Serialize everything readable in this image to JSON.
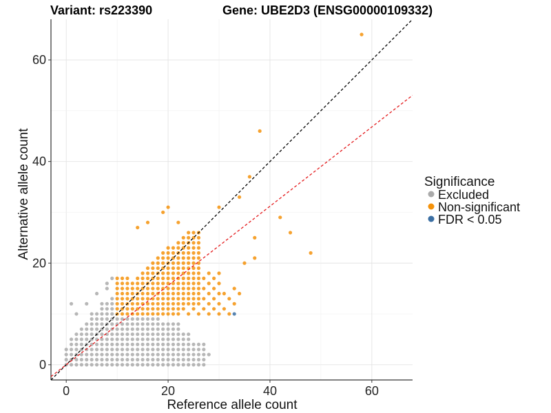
{
  "chart_data": {
    "type": "scatter",
    "title_left": "Variant: rs223390",
    "title_right": "Gene: UBE2D3 (ENSG00000109332)",
    "xlabel": "Reference allele count",
    "ylabel": "Alternative allele count",
    "xlim": [
      -3,
      68
    ],
    "ylim": [
      -3,
      68
    ],
    "x_ticks": [
      0,
      20,
      40,
      60
    ],
    "y_ticks": [
      0,
      20,
      40,
      60
    ],
    "grid": true,
    "legend": {
      "title": "Significance",
      "position": "right",
      "entries": [
        {
          "label": "Excluded",
          "color": "#AAAAAA"
        },
        {
          "label": "Non-significant",
          "color": "#F5920A"
        },
        {
          "label": "FDR < 0.05",
          "color": "#3B6FA3"
        }
      ]
    },
    "reference_lines": [
      {
        "name": "y = x",
        "slope": 1,
        "intercept": 0,
        "color": "#000000",
        "style": "dashed"
      },
      {
        "name": "fit",
        "slope": 0.78,
        "intercept": 0,
        "color": "#E41A1C",
        "style": "dashed"
      }
    ],
    "outliers": {
      "non_significant": [
        [
          58,
          65
        ],
        [
          38,
          46
        ],
        [
          36,
          37
        ],
        [
          34,
          33
        ],
        [
          30,
          31
        ],
        [
          42,
          29
        ],
        [
          44,
          26
        ],
        [
          48,
          22
        ],
        [
          37,
          25
        ],
        [
          37,
          21
        ],
        [
          35,
          20
        ],
        [
          20,
          31
        ],
        [
          19,
          30
        ],
        [
          22,
          28
        ],
        [
          16,
          28
        ],
        [
          14,
          27
        ]
      ],
      "significant": [
        [
          33,
          10
        ]
      ]
    }
  }
}
